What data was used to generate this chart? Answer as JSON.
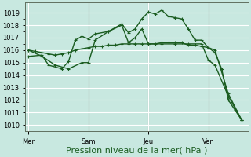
{
  "title": "Pression niveau de la mer( hPa )",
  "bg_color": "#c8e8e0",
  "grid_color": "#ffffff",
  "line_color": "#1a5c20",
  "ylim": [
    1009.5,
    1019.8
  ],
  "yticks": [
    1010,
    1011,
    1012,
    1013,
    1014,
    1015,
    1016,
    1017,
    1018,
    1019
  ],
  "xtick_labels": [
    "Mer",
    "Sam",
    "Jeu",
    "Ven"
  ],
  "xtick_positions": [
    0,
    9,
    18,
    27
  ],
  "xlim": [
    -0.5,
    33
  ],
  "vline_positions": [
    0,
    9,
    18,
    27
  ],
  "line1_x": [
    0,
    1,
    2,
    3,
    4,
    5,
    6,
    7,
    8,
    9,
    10,
    11,
    12,
    13,
    14,
    15,
    16,
    17,
    18,
    19,
    20,
    21,
    22,
    23,
    24,
    25,
    26,
    27,
    28,
    29,
    30,
    31,
    32
  ],
  "line1_y": [
    1016.0,
    1015.9,
    1015.8,
    1015.7,
    1015.6,
    1015.7,
    1015.8,
    1016.0,
    1016.1,
    1016.2,
    1016.3,
    1016.3,
    1016.4,
    1016.4,
    1016.5,
    1016.5,
    1016.5,
    1016.5,
    1016.5,
    1016.5,
    1016.6,
    1016.6,
    1016.6,
    1016.6,
    1016.4,
    1016.4,
    1016.3,
    1016.2,
    1015.8,
    1014.5,
    1012.0,
    1011.2,
    1010.4
  ],
  "line2_x": [
    0,
    2,
    4,
    6,
    8,
    9,
    10,
    12,
    14,
    15,
    16,
    17,
    18,
    19,
    20,
    21,
    22,
    23,
    24,
    25,
    26,
    27,
    28,
    30,
    32
  ],
  "line2_y": [
    1016.0,
    1015.5,
    1014.8,
    1014.5,
    1015.0,
    1015.0,
    1016.8,
    1017.5,
    1018.1,
    1017.4,
    1017.7,
    1018.5,
    1019.05,
    1018.9,
    1019.2,
    1018.7,
    1018.6,
    1018.5,
    1017.7,
    1016.8,
    1016.8,
    1016.2,
    1016.0,
    1012.5,
    1010.4
  ],
  "line3_x": [
    0,
    2,
    3,
    5,
    6,
    7,
    8,
    9,
    10,
    12,
    14,
    15,
    16,
    17,
    18,
    20,
    22,
    24,
    26,
    27,
    28,
    30,
    32
  ],
  "line3_y": [
    1015.5,
    1015.6,
    1014.8,
    1014.5,
    1015.1,
    1016.8,
    1017.1,
    1016.9,
    1017.3,
    1017.5,
    1018.0,
    1016.6,
    1017.0,
    1017.7,
    1016.5,
    1016.5,
    1016.5,
    1016.5,
    1016.5,
    1015.2,
    1014.8,
    1012.3,
    1010.4
  ],
  "marker_size": 2.5,
  "linewidth": 1.0,
  "tick_fontsize": 6,
  "xlabel_fontsize": 8
}
